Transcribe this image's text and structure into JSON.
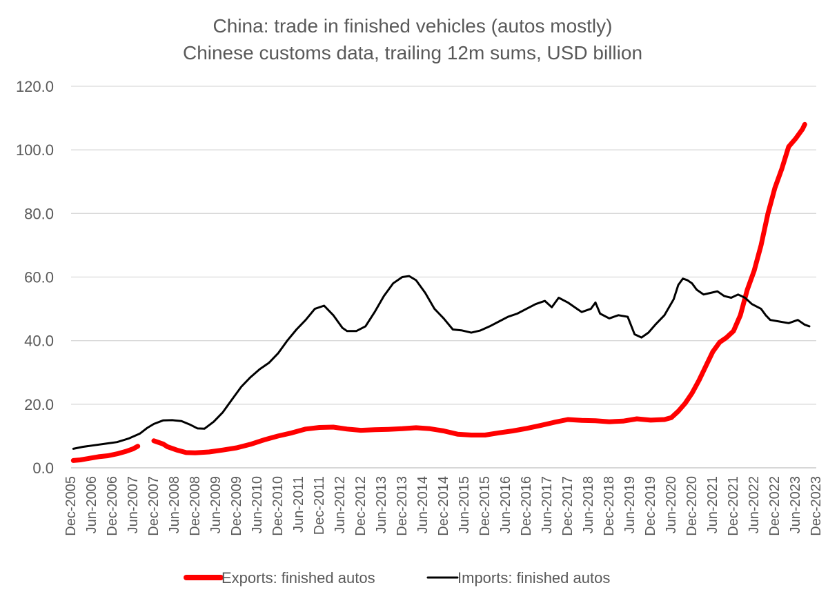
{
  "chart_data": {
    "type": "line",
    "title": "China: trade in finished vehicles  (autos mostly)",
    "subtitle": "Chinese customs data, trailing 12m sums, USD billion",
    "xlabel": "",
    "ylabel": "",
    "ylim": [
      0,
      120
    ],
    "y_ticks": [
      "0.0",
      "20.0",
      "40.0",
      "60.0",
      "80.0",
      "100.0",
      "120.0"
    ],
    "x_ticks": [
      "Dec-2005",
      "Jun-2006",
      "Dec-2006",
      "Jun-2007",
      "Dec-2007",
      "Jun-2008",
      "Dec-2008",
      "Jun-2009",
      "Dec-2009",
      "Jun-2010",
      "Dec-2010",
      "Jun-2011",
      "Dec-2011",
      "Jun-2012",
      "Dec-2012",
      "Jun-2013",
      "Dec-2013",
      "Jun-2014",
      "Dec-2014",
      "Jun-2015",
      "Dec-2015",
      "Jun-2016",
      "Dec-2016",
      "Jun-2017",
      "Dec-2017",
      "Jun-2018",
      "Dec-2018",
      "Jun-2019",
      "Dec-2019",
      "Jun-2020",
      "Dec-2020",
      "Jun-2021",
      "Dec-2021",
      "Jun-2022",
      "Dec-2022",
      "Jun-2023",
      "Dec-2023"
    ],
    "grid": true,
    "legend_position": "bottom",
    "series": [
      {
        "name": "Exports: finished autos",
        "color": "#ff0000",
        "points": [
          [
            1,
            2.3
          ],
          [
            4,
            2.5
          ],
          [
            8,
            3.0
          ],
          [
            12,
            3.5
          ],
          [
            16,
            3.8
          ],
          [
            20,
            4.4
          ],
          [
            24,
            5.2
          ],
          [
            27,
            6.0
          ],
          [
            29,
            6.8
          ],
          null,
          [
            36,
            8.5
          ],
          [
            40,
            7.5
          ],
          [
            42,
            6.6
          ],
          [
            46,
            5.6
          ],
          [
            50,
            4.8
          ],
          [
            54,
            4.7
          ],
          [
            60,
            5.0
          ],
          [
            66,
            5.6
          ],
          [
            72,
            6.3
          ],
          [
            78,
            7.4
          ],
          [
            84,
            8.8
          ],
          [
            90,
            10.0
          ],
          [
            96,
            11.0
          ],
          [
            102,
            12.2
          ],
          [
            108,
            12.7
          ],
          [
            114,
            12.8
          ],
          [
            120,
            12.2
          ],
          [
            126,
            11.8
          ],
          [
            132,
            12.0
          ],
          [
            138,
            12.1
          ],
          [
            144,
            12.3
          ],
          [
            150,
            12.6
          ],
          [
            156,
            12.3
          ],
          [
            162,
            11.6
          ],
          [
            168,
            10.6
          ],
          [
            174,
            10.3
          ],
          [
            180,
            10.3
          ],
          [
            186,
            11.0
          ],
          [
            192,
            11.6
          ],
          [
            198,
            12.4
          ],
          [
            204,
            13.3
          ],
          [
            210,
            14.3
          ],
          [
            216,
            15.2
          ],
          [
            222,
            14.9
          ],
          [
            228,
            14.8
          ],
          [
            234,
            14.5
          ],
          [
            240,
            14.7
          ],
          [
            246,
            15.4
          ],
          [
            252,
            15.0
          ],
          [
            258,
            15.2
          ],
          [
            261,
            15.8
          ],
          [
            264,
            17.8
          ],
          [
            267,
            20.3
          ],
          [
            270,
            23.5
          ],
          [
            273,
            27.5
          ],
          [
            276,
            32.0
          ],
          [
            279,
            36.5
          ],
          [
            282,
            39.5
          ],
          [
            285,
            41.0
          ],
          [
            288,
            43.0
          ],
          [
            291,
            48.0
          ],
          [
            294,
            56.0
          ],
          [
            297,
            62.0
          ],
          [
            300,
            70.0
          ],
          [
            303,
            80.0
          ],
          [
            306,
            88.0
          ],
          [
            309,
            94.0
          ],
          [
            312,
            101.0
          ],
          [
            315,
            103.5
          ],
          [
            318,
            106.5
          ],
          [
            319,
            108.0
          ]
        ]
      },
      {
        "name": "Imports: finished autos",
        "color": "#000000",
        "points": [
          [
            1,
            6.0
          ],
          [
            5,
            6.6
          ],
          [
            10,
            7.1
          ],
          [
            15,
            7.6
          ],
          [
            20,
            8.1
          ],
          [
            25,
            9.2
          ],
          [
            30,
            10.8
          ],
          [
            33,
            12.5
          ],
          [
            36,
            13.8
          ],
          [
            40,
            14.9
          ],
          [
            44,
            15.0
          ],
          [
            48,
            14.7
          ],
          [
            52,
            13.5
          ],
          [
            55,
            12.4
          ],
          [
            58,
            12.3
          ],
          [
            62,
            14.5
          ],
          [
            66,
            17.5
          ],
          [
            70,
            21.5
          ],
          [
            74,
            25.5
          ],
          [
            78,
            28.5
          ],
          [
            82,
            31.0
          ],
          [
            86,
            33.0
          ],
          [
            90,
            36.0
          ],
          [
            94,
            40.0
          ],
          [
            98,
            43.5
          ],
          [
            102,
            46.5
          ],
          [
            106,
            50.0
          ],
          [
            110,
            51.0
          ],
          [
            114,
            48.0
          ],
          [
            118,
            44.0
          ],
          [
            120,
            43.0
          ],
          [
            124,
            43.0
          ],
          [
            128,
            44.5
          ],
          [
            132,
            49.0
          ],
          [
            136,
            54.0
          ],
          [
            140,
            58.0
          ],
          [
            144,
            60.0
          ],
          [
            147,
            60.3
          ],
          [
            150,
            59.0
          ],
          [
            154,
            55.0
          ],
          [
            158,
            50.0
          ],
          [
            162,
            47.0
          ],
          [
            166,
            43.5
          ],
          [
            170,
            43.2
          ],
          [
            174,
            42.5
          ],
          [
            178,
            43.2
          ],
          [
            182,
            44.5
          ],
          [
            186,
            46.0
          ],
          [
            190,
            47.5
          ],
          [
            194,
            48.5
          ],
          [
            198,
            50.0
          ],
          [
            202,
            51.5
          ],
          [
            206,
            52.5
          ],
          [
            209,
            50.5
          ],
          [
            212,
            53.5
          ],
          [
            216,
            52.0
          ],
          [
            220,
            50.0
          ],
          [
            222,
            49.0
          ],
          [
            226,
            50.0
          ],
          [
            228,
            52.0
          ],
          [
            230,
            48.5
          ],
          [
            234,
            47.0
          ],
          [
            238,
            48.0
          ],
          [
            242,
            47.5
          ],
          [
            245,
            42.0
          ],
          [
            248,
            41.0
          ],
          [
            251,
            42.5
          ],
          [
            254,
            45.0
          ],
          [
            258,
            48.0
          ],
          [
            262,
            53.0
          ],
          [
            264,
            57.5
          ],
          [
            266,
            59.5
          ],
          [
            268,
            59.0
          ],
          [
            270,
            58.0
          ],
          [
            272,
            56.0
          ],
          [
            275,
            54.5
          ],
          [
            278,
            55.0
          ],
          [
            281,
            55.5
          ],
          [
            284,
            54.0
          ],
          [
            287,
            53.5
          ],
          [
            290,
            54.5
          ],
          [
            293,
            53.5
          ],
          [
            296,
            51.5
          ],
          [
            300,
            50.0
          ],
          [
            302,
            48.0
          ],
          [
            304,
            46.5
          ],
          [
            308,
            46.0
          ],
          [
            312,
            45.5
          ],
          [
            316,
            46.5
          ],
          [
            319,
            45.0
          ],
          [
            321,
            44.5
          ]
        ]
      }
    ]
  }
}
